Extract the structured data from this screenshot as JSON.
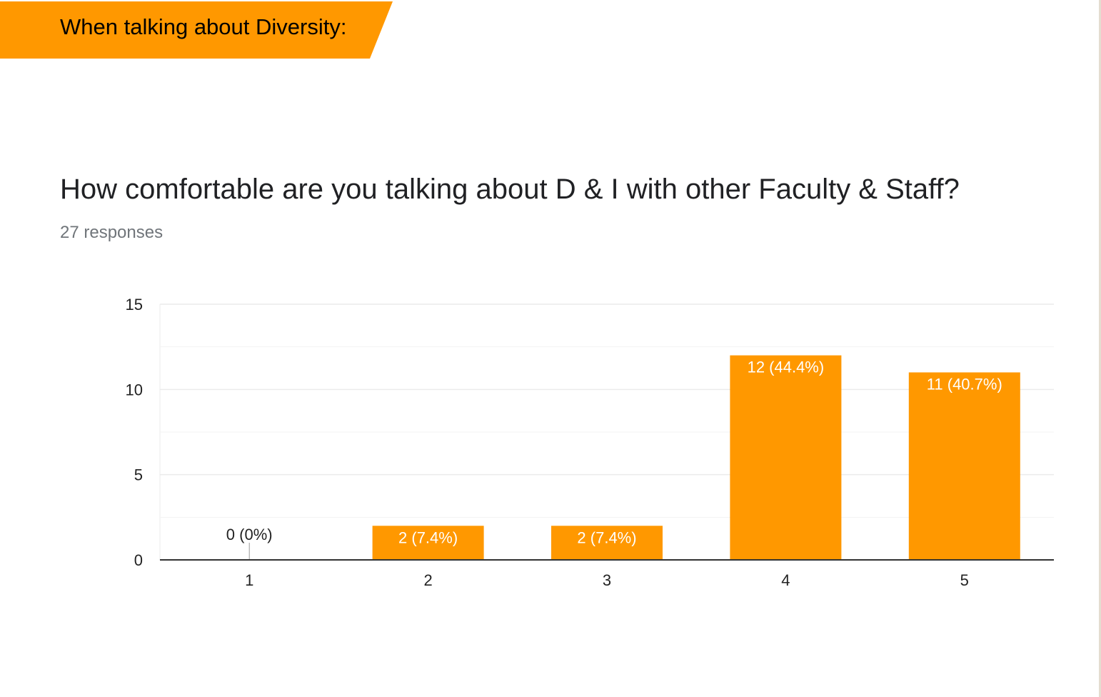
{
  "section": {
    "title": "When talking about Diversity:"
  },
  "question": {
    "title": "How comfortable are you talking about D & I with other Faculty & Staff?",
    "responses": "27 responses"
  },
  "colors": {
    "accent": "#ff9800",
    "grid": "#ebebeb",
    "axis": "#333333",
    "bar_label": "#ffffff",
    "outside_label": "#222222"
  },
  "chart_data": {
    "type": "bar",
    "categories": [
      "1",
      "2",
      "3",
      "4",
      "5"
    ],
    "values": [
      0,
      2,
      2,
      12,
      11
    ],
    "data_labels": [
      "0 (0%)",
      "2 (7.4%)",
      "2 (7.4%)",
      "12 (44.4%)",
      "11 (40.7%)"
    ],
    "ylim": [
      0,
      15
    ],
    "yticks": [
      0,
      5,
      10,
      15
    ],
    "minor_gridlines": true,
    "grid": true,
    "title": "",
    "xlabel": "",
    "ylabel": ""
  }
}
